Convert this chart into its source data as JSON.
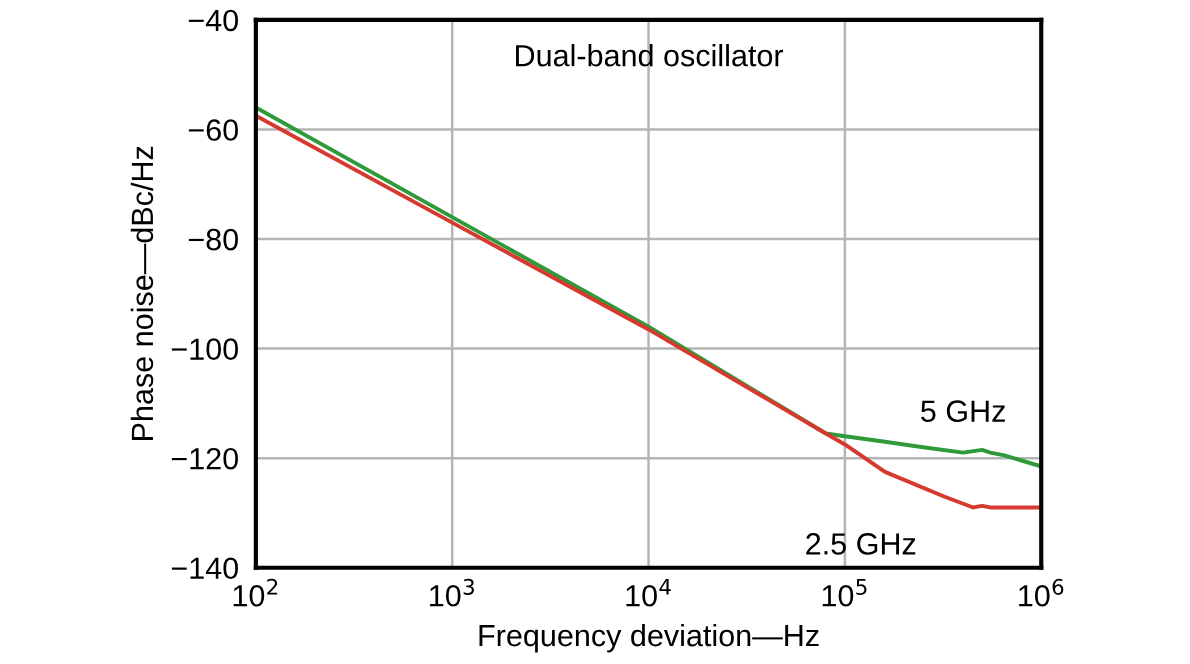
{
  "chart_data": {
    "type": "line",
    "title": "Dual-band oscillator",
    "xlabel": "Frequency deviation—Hz",
    "ylabel": "Phase noise—dBc/Hz",
    "log": "x",
    "xlim": [
      100,
      1000000
    ],
    "ylim": [
      -140,
      -40
    ],
    "xticks": [
      {
        "value": 100,
        "label": "10$^{2}$"
      },
      {
        "value": 1000,
        "label": "10$^{3}$"
      },
      {
        "value": 10000,
        "label": "10$^{4}$"
      },
      {
        "value": 100000,
        "label": "10$^{5}$"
      },
      {
        "value": 1000000,
        "label": "10$^{6}$"
      }
    ],
    "yticks": [
      -140,
      -120,
      -100,
      -80,
      -60,
      -40
    ],
    "grid": true,
    "legend": false,
    "series": [
      {
        "name": "5 GHz",
        "color": "#2e9a3a",
        "x": [
          100,
          1000,
          10000,
          80000,
          100000,
          160000,
          250000,
          400000,
          500000,
          550000,
          650000,
          1000000
        ],
        "values": [
          -56,
          -76,
          -96,
          -115.5,
          -116,
          -117,
          -118,
          -119,
          -118.5,
          -119,
          -119.5,
          -121.5
        ]
      },
      {
        "name": "2.5 GHz",
        "color": "#d63a2e",
        "x": [
          100,
          1000,
          10000,
          80000,
          100000,
          160000,
          320000,
          450000,
          500000,
          550000,
          1000000
        ],
        "values": [
          -57.5,
          -77,
          -96.5,
          -115.5,
          -117.5,
          -122.5,
          -127,
          -129,
          -128.7,
          -129,
          -129
        ]
      }
    ]
  }
}
